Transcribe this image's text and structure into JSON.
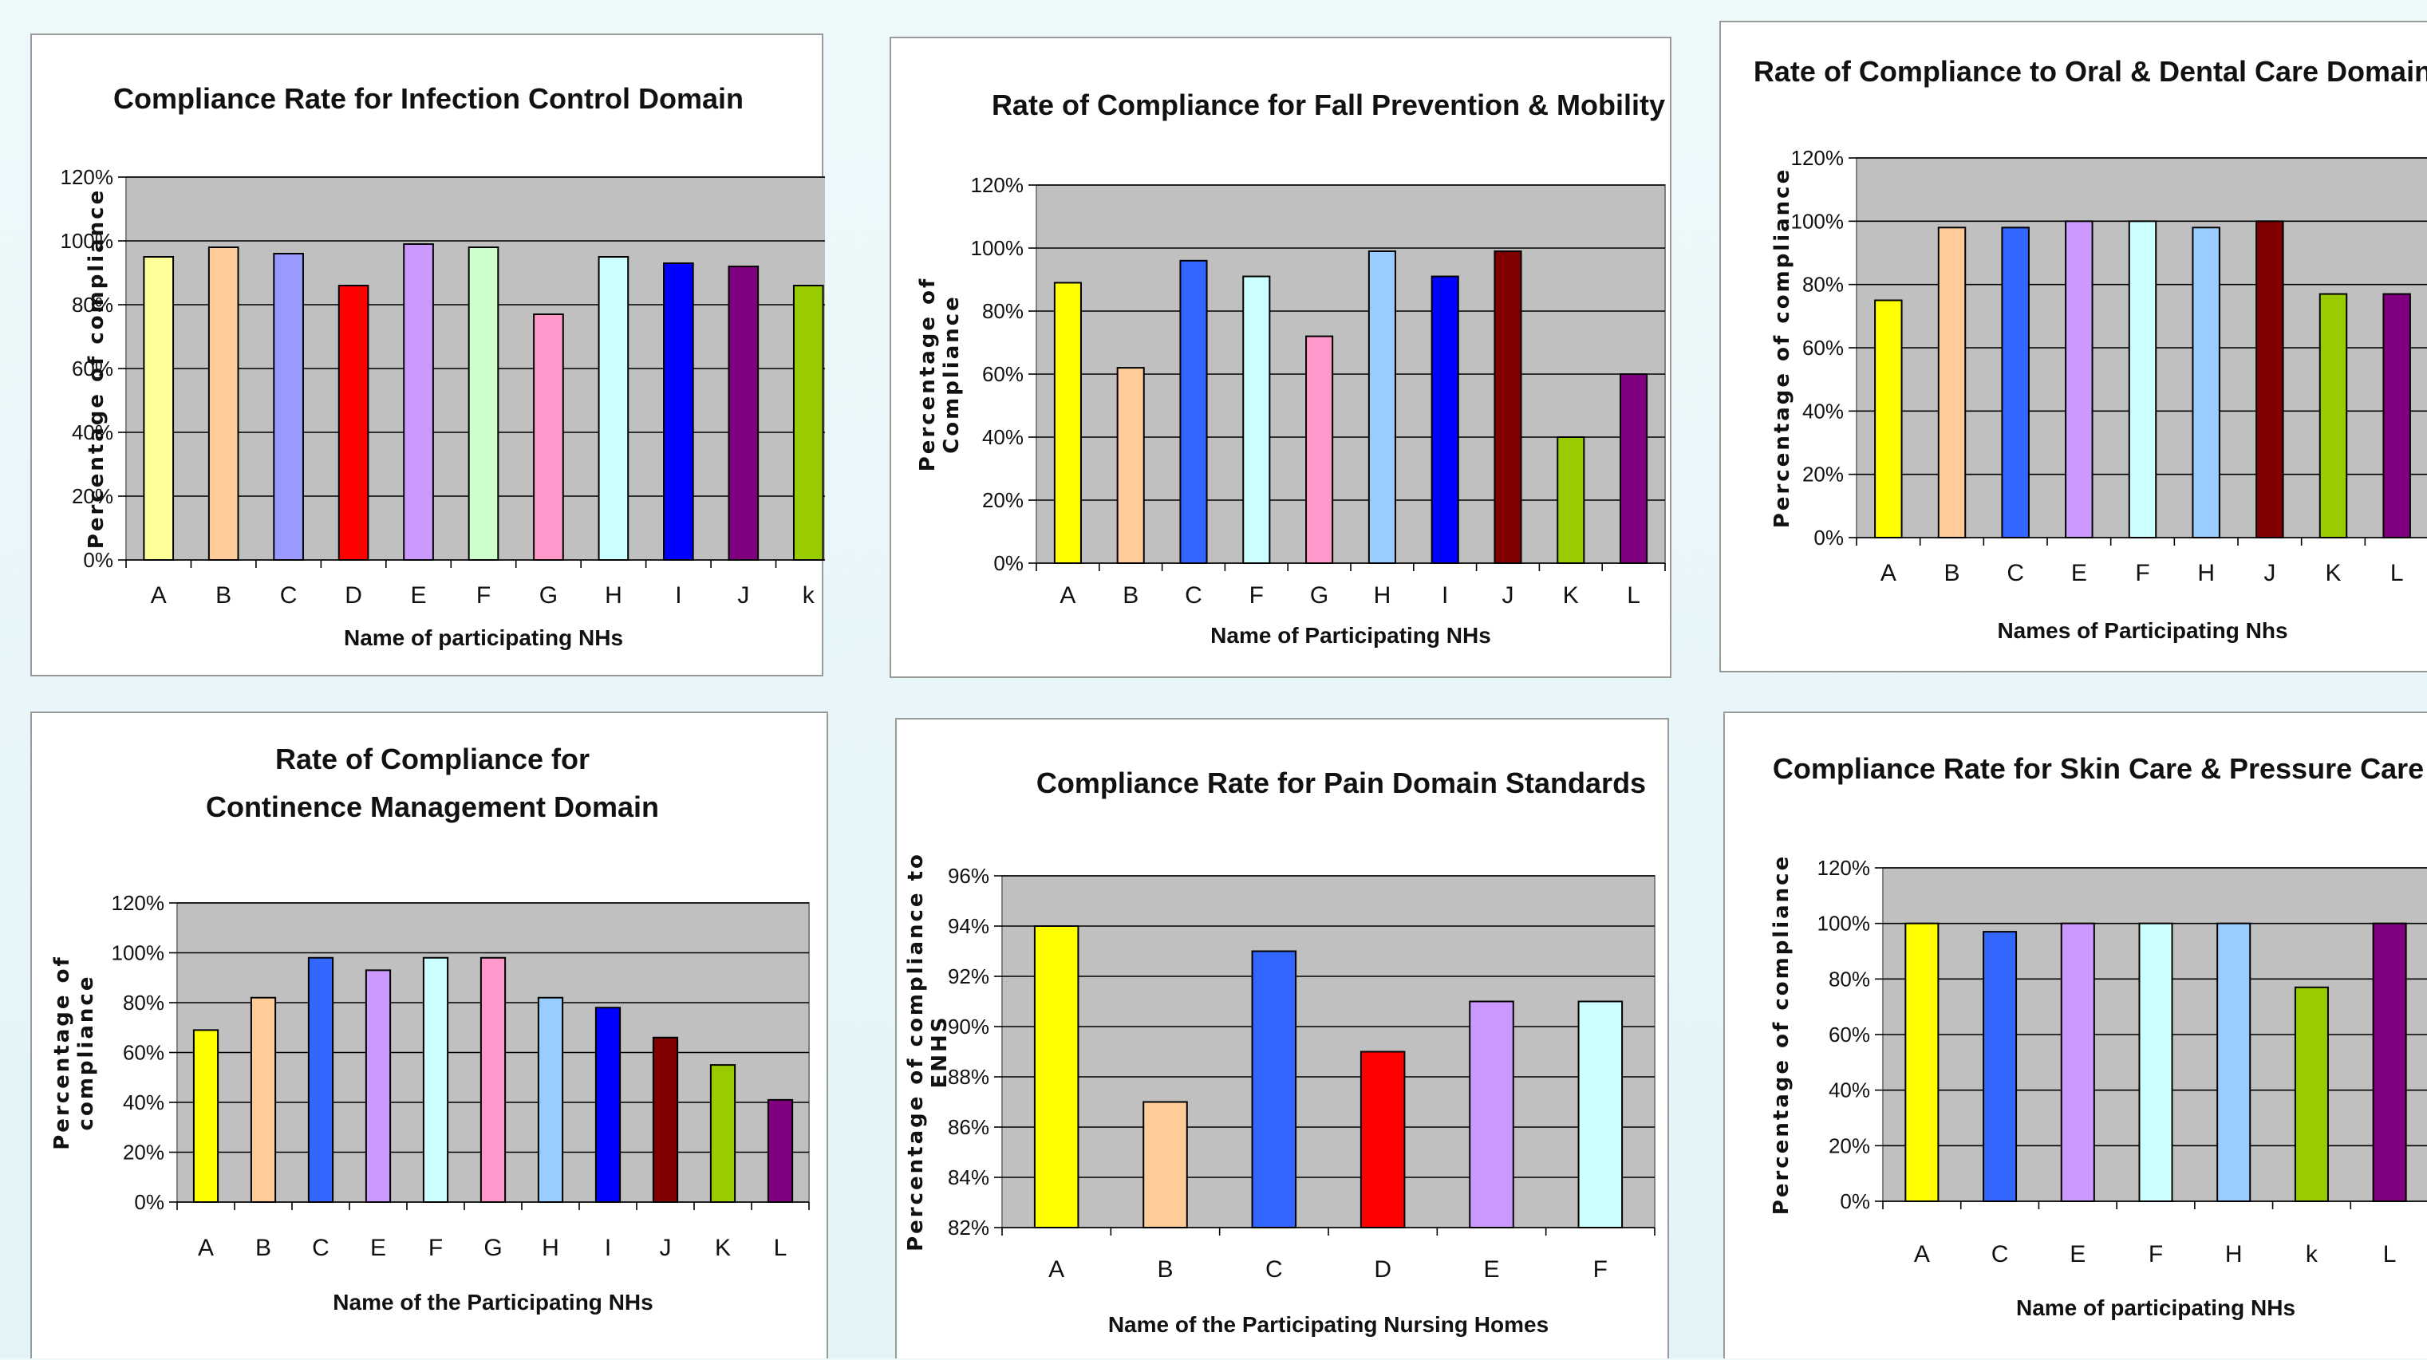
{
  "chart_data": [
    {
      "type": "bar",
      "title_lines": [
        "Compliance Rate for Infection Control Domain"
      ],
      "ylabel_lines": [
        "Percentage of compliance"
      ],
      "xlabel": "Name of participating NHs",
      "categories": [
        "A",
        "B",
        "C",
        "D",
        "E",
        "F",
        "G",
        "H",
        "I",
        "J",
        "k"
      ],
      "values": [
        95,
        98,
        96,
        86,
        99,
        98,
        77,
        95,
        93,
        92,
        86
      ],
      "colors": [
        "#ffff99",
        "#ffcc99",
        "#9999ff",
        "#ff0000",
        "#cc99ff",
        "#ccffcc",
        "#ff99cc",
        "#ccffff",
        "#0000ff",
        "#800080",
        "#99cc00"
      ],
      "yticks": [
        "0%",
        "20%",
        "40%",
        "60%",
        "80%",
        "100%",
        "120%"
      ],
      "ylim": [
        0,
        120
      ],
      "grid": true
    },
    {
      "type": "bar",
      "title_lines": [
        "Rate of Compliance for Fall Prevention & Mobility"
      ],
      "ylabel_lines": [
        "Percentage of",
        "Compliance"
      ],
      "xlabel": "Name of Participating NHs",
      "categories": [
        "A",
        "B",
        "C",
        "F",
        "G",
        "H",
        "I",
        "J",
        "K",
        "L"
      ],
      "values": [
        89,
        62,
        96,
        91,
        72,
        99,
        91,
        99,
        40,
        60
      ],
      "colors": [
        "#ffff00",
        "#ffcc99",
        "#3366ff",
        "#ccffff",
        "#ff99cc",
        "#99ccff",
        "#0000ff",
        "#800000",
        "#99cc00",
        "#800080"
      ],
      "yticks": [
        "0%",
        "20%",
        "40%",
        "60%",
        "80%",
        "100%",
        "120%"
      ],
      "ylim": [
        0,
        120
      ],
      "grid": true
    },
    {
      "type": "bar",
      "title_lines": [
        "Rate of Compliance to Oral & Dental Care Domain"
      ],
      "ylabel_lines": [
        "Percentage of compliance"
      ],
      "xlabel": "Names of Participating Nhs",
      "categories": [
        "A",
        "B",
        "C",
        "E",
        "F",
        "H",
        "J",
        "K",
        "L"
      ],
      "values": [
        75,
        98,
        98,
        100,
        100,
        98,
        100,
        77,
        77
      ],
      "colors": [
        "#ffff00",
        "#ffcc99",
        "#3366ff",
        "#cc99ff",
        "#ccffff",
        "#99ccff",
        "#800000",
        "#99cc00",
        "#800080"
      ],
      "yticks": [
        "0%",
        "20%",
        "40%",
        "60%",
        "80%",
        "100%",
        "120%"
      ],
      "ylim": [
        0,
        120
      ],
      "grid": true
    },
    {
      "type": "bar",
      "title_lines": [
        "Rate of Compliance for",
        "Continence Management Domain"
      ],
      "ylabel_lines": [
        "Percentage of",
        "compliance"
      ],
      "xlabel": "Name of the Participating NHs",
      "categories": [
        "A",
        "B",
        "C",
        "E",
        "F",
        "G",
        "H",
        "I",
        "J",
        "K",
        "L"
      ],
      "values": [
        69,
        82,
        98,
        93,
        98,
        98,
        82,
        78,
        66,
        55,
        41
      ],
      "colors": [
        "#ffff00",
        "#ffcc99",
        "#3366ff",
        "#cc99ff",
        "#ccffff",
        "#ff99cc",
        "#99ccff",
        "#0000ff",
        "#800000",
        "#99cc00",
        "#800080"
      ],
      "yticks": [
        "0%",
        "20%",
        "40%",
        "60%",
        "80%",
        "100%",
        "120%"
      ],
      "ylim": [
        0,
        120
      ],
      "grid": true
    },
    {
      "type": "bar",
      "title_lines": [
        "Compliance Rate  for Pain Domain Standards"
      ],
      "ylabel_lines": [
        "Percentage of compliance to",
        "ENHS"
      ],
      "xlabel": "Name of the Participating Nursing Homes",
      "categories": [
        "A",
        "B",
        "C",
        "D",
        "E",
        "F"
      ],
      "values": [
        94,
        87,
        93,
        89,
        91,
        91
      ],
      "colors": [
        "#ffff00",
        "#ffcc99",
        "#3366ff",
        "#ff0000",
        "#cc99ff",
        "#ccffff"
      ],
      "yticks": [
        "82%",
        "84%",
        "86%",
        "88%",
        "90%",
        "92%",
        "94%",
        "96%"
      ],
      "ylim": [
        82,
        96
      ],
      "grid": true
    },
    {
      "type": "bar",
      "title_lines": [
        "Compliance Rate for Skin Care & Pressure Care"
      ],
      "ylabel_lines": [
        "Percentage of compliance"
      ],
      "xlabel": "Name of participating NHs",
      "categories": [
        "A",
        "C",
        "E",
        "F",
        "H",
        "k",
        "L"
      ],
      "values": [
        100,
        97,
        100,
        100,
        100,
        77,
        100
      ],
      "colors": [
        "#ffff00",
        "#3366ff",
        "#cc99ff",
        "#ccffff",
        "#99ccff",
        "#99cc00",
        "#800080"
      ],
      "yticks": [
        "0%",
        "20%",
        "40%",
        "60%",
        "80%",
        "100%",
        "120%"
      ],
      "ylim": [
        0,
        120
      ],
      "grid": true
    }
  ]
}
